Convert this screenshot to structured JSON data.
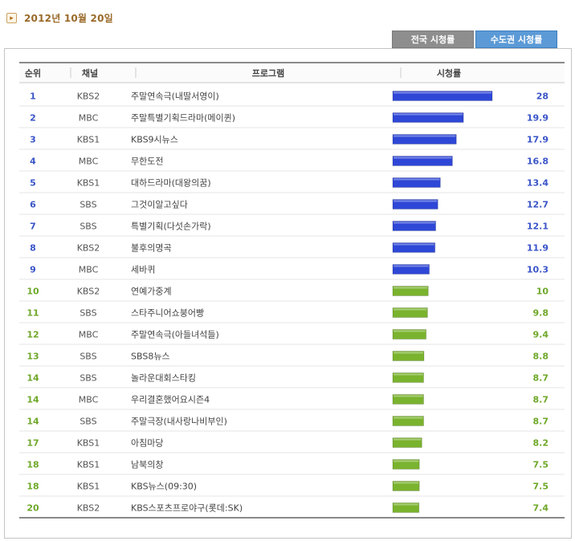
{
  "date_label": "2012년 10월 20일",
  "tabs": [
    {
      "label": "전국 시청률",
      "active": false
    },
    {
      "label": "수도권 시청률",
      "active": true
    }
  ],
  "colors": {
    "top_bar": "#2e47d6",
    "other_bar": "#7ab32e",
    "top_rank_text": "#3a55c8",
    "other_rank_text": "#6fa82a",
    "accent_tab": "#5b9ad6"
  },
  "chart_data": {
    "type": "table",
    "title": "",
    "columns": [
      "순위",
      "채널",
      "프로그램",
      "시청률"
    ],
    "value_range": [
      0,
      28
    ],
    "rows": [
      {
        "rank": "1",
        "channel": "KBS2",
        "program": "주말연속극(내딸서영이)",
        "rating": 28,
        "rating_label": "28"
      },
      {
        "rank": "2",
        "channel": "MBC",
        "program": "주말특별기획드라마(메이퀸)",
        "rating": 19.9,
        "rating_label": "19.9"
      },
      {
        "rank": "3",
        "channel": "KBS1",
        "program": "KBS9시뉴스",
        "rating": 17.9,
        "rating_label": "17.9"
      },
      {
        "rank": "4",
        "channel": "MBC",
        "program": "무한도전",
        "rating": 16.8,
        "rating_label": "16.8"
      },
      {
        "rank": "5",
        "channel": "KBS1",
        "program": "대하드라마(대왕의꿈)",
        "rating": 13.4,
        "rating_label": "13.4"
      },
      {
        "rank": "6",
        "channel": "SBS",
        "program": "그것이알고싶다",
        "rating": 12.7,
        "rating_label": "12.7"
      },
      {
        "rank": "7",
        "channel": "SBS",
        "program": "특별기획(다섯손가락)",
        "rating": 12.1,
        "rating_label": "12.1"
      },
      {
        "rank": "8",
        "channel": "KBS2",
        "program": "불후의명곡",
        "rating": 11.9,
        "rating_label": "11.9"
      },
      {
        "rank": "9",
        "channel": "MBC",
        "program": "세바퀴",
        "rating": 10.3,
        "rating_label": "10.3"
      },
      {
        "rank": "10",
        "channel": "KBS2",
        "program": "연예가중계",
        "rating": 10,
        "rating_label": "10"
      },
      {
        "rank": "11",
        "channel": "SBS",
        "program": "스타주니어쇼붕어빵",
        "rating": 9.8,
        "rating_label": "9.8"
      },
      {
        "rank": "12",
        "channel": "MBC",
        "program": "주말연속극(아들녀석들)",
        "rating": 9.4,
        "rating_label": "9.4"
      },
      {
        "rank": "13",
        "channel": "SBS",
        "program": "SBS8뉴스",
        "rating": 8.8,
        "rating_label": "8.8"
      },
      {
        "rank": "14",
        "channel": "SBS",
        "program": "놀라운대회스타킹",
        "rating": 8.7,
        "rating_label": "8.7"
      },
      {
        "rank": "14",
        "channel": "MBC",
        "program": "우리결혼했어요시즌4",
        "rating": 8.7,
        "rating_label": "8.7"
      },
      {
        "rank": "14",
        "channel": "SBS",
        "program": "주말극장(내사랑나비부인)",
        "rating": 8.7,
        "rating_label": "8.7"
      },
      {
        "rank": "17",
        "channel": "KBS1",
        "program": "아침마당",
        "rating": 8.2,
        "rating_label": "8.2"
      },
      {
        "rank": "18",
        "channel": "KBS1",
        "program": "남북의창",
        "rating": 7.5,
        "rating_label": "7.5"
      },
      {
        "rank": "18",
        "channel": "KBS1",
        "program": "KBS뉴스(09:30)",
        "rating": 7.5,
        "rating_label": "7.5"
      },
      {
        "rank": "20",
        "channel": "KBS2",
        "program": "KBS스포츠프로야구(롯데:SK)",
        "rating": 7.4,
        "rating_label": "7.4"
      }
    ]
  }
}
